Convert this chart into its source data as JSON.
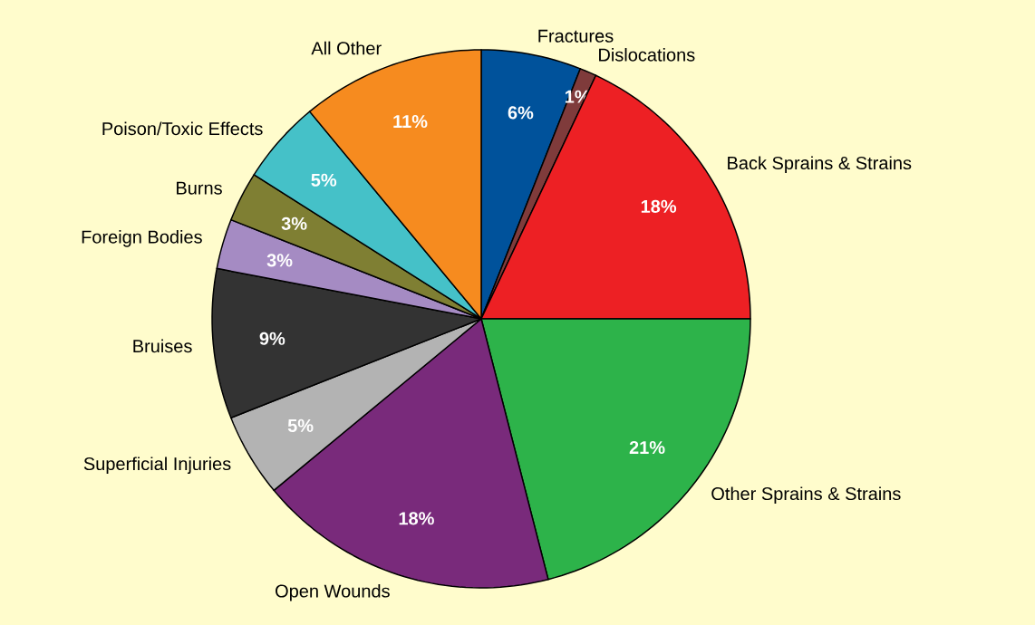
{
  "chart_data": {
    "type": "pie",
    "categories": [
      "Fractures",
      "Dislocations",
      "Back Sprains & Strains",
      "Other Sprains & Strains",
      "Open Wounds",
      "Superficial Injuries",
      "Bruises",
      "Foreign Bodies",
      "Burns",
      "Poison/Toxic Effects",
      "All Other"
    ],
    "values": [
      6,
      1,
      18,
      21,
      18,
      5,
      9,
      3,
      3,
      5,
      11
    ],
    "value_labels": [
      "6%",
      "1%",
      "18%",
      "21%",
      "18%",
      "5%",
      "9%",
      "3%",
      "3%",
      "5%",
      "11%"
    ],
    "colors": [
      "#00529b",
      "#7f3b3b",
      "#ed2024",
      "#2db34a",
      "#792a7b",
      "#b3b3b3",
      "#333333",
      "#a58bc3",
      "#7f7f33",
      "#45c1c8",
      "#f68b1f"
    ]
  }
}
